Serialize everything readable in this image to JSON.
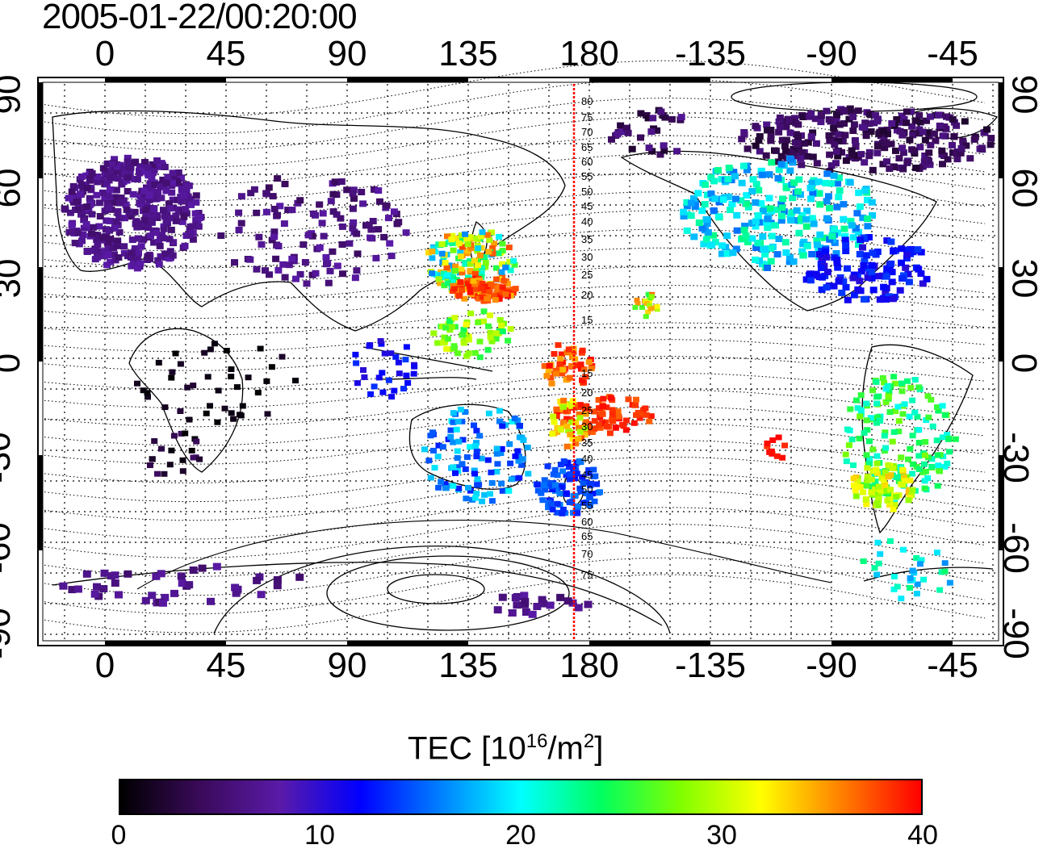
{
  "title": "2005-01-22/00:20:00",
  "top_axis_ticks": [
    "0",
    "45",
    "90",
    "135",
    "180",
    "-135",
    "-90",
    "-45"
  ],
  "bottom_axis_ticks": [
    "0",
    "45",
    "90",
    "135",
    "180",
    "-135",
    "-90",
    "-45"
  ],
  "left_axis_ticks": [
    "90",
    "60",
    "30",
    "0",
    "-30",
    "-60",
    "-90"
  ],
  "right_axis_ticks": [
    "90",
    "60",
    "30",
    "0",
    "-30",
    "-60",
    "-90"
  ],
  "contour_labels_upper": [
    "80",
    "75",
    "70",
    "65",
    "60",
    "55",
    "50",
    "45",
    "40",
    "35",
    "30",
    "25",
    "20",
    "15"
  ],
  "contour_labels_lower": [
    "15",
    "20",
    "25",
    "30",
    "35",
    "40",
    "45",
    "50",
    "55",
    "60",
    "65",
    "70",
    "75"
  ],
  "colorbar": {
    "label_main": "TEC  [10",
    "label_exp": "16",
    "label_mid": "/m",
    "label_exp2": "2",
    "label_end": "]",
    "ticks": [
      "0",
      "10",
      "20",
      "30",
      "40"
    ],
    "stops": [
      "#000000",
      "#3a0a5a",
      "#5a1aa8",
      "#0000ff",
      "#0080ff",
      "#00ffff",
      "#00ff60",
      "#80ff00",
      "#ffff00",
      "#ff8000",
      "#ff0000"
    ]
  },
  "colors": {
    "dipole_line": "#ff0000",
    "grid": "#000000"
  }
}
